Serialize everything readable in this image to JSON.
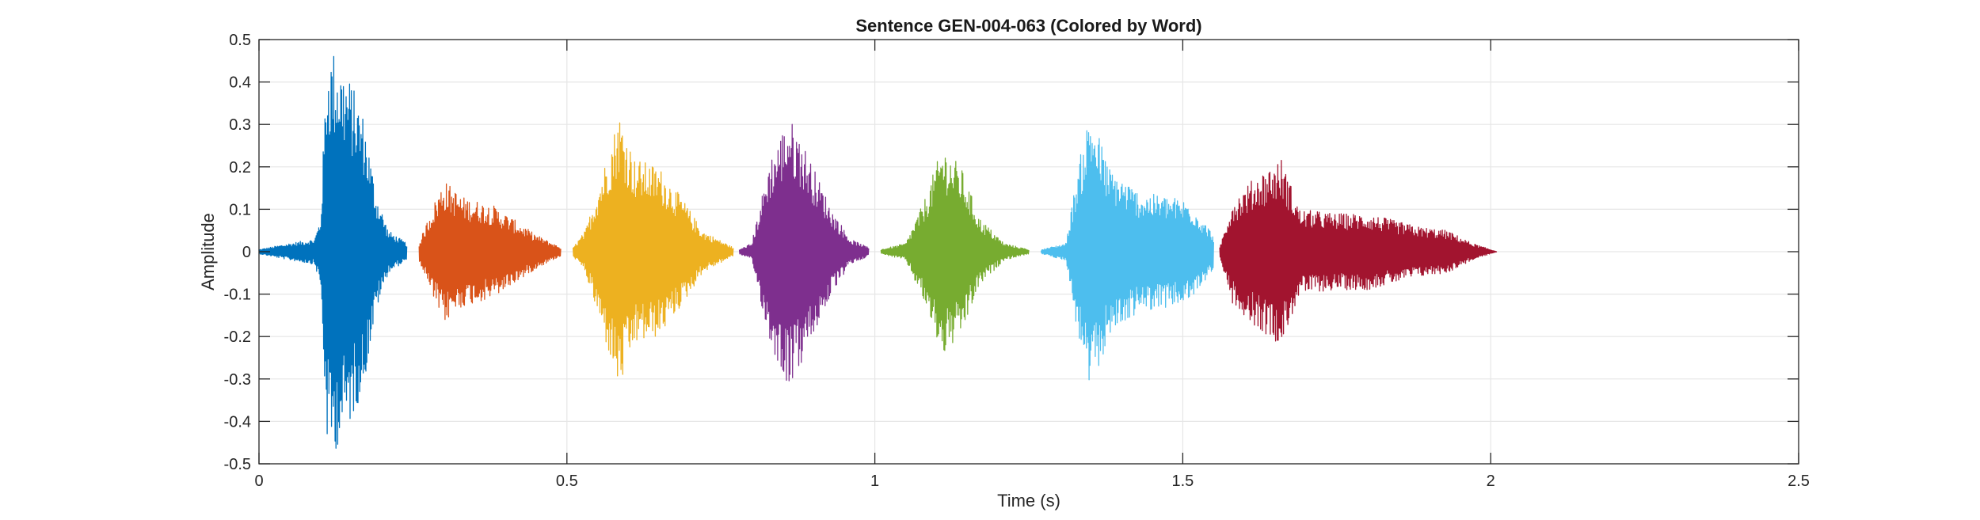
{
  "chart_data": {
    "type": "line",
    "title": "Sentence GEN-004-063 (Colored by Word)",
    "xlabel": "Time (s)",
    "ylabel": "Amplitude",
    "xlim": [
      0,
      2.5
    ],
    "ylim": [
      -0.5,
      0.5
    ],
    "x_ticks": [
      "0",
      "0.5",
      "1",
      "1.5",
      "2",
      "2.5"
    ],
    "x_tick_values": [
      0,
      0.5,
      1,
      1.5,
      2,
      2.5
    ],
    "y_ticks": [
      "0.5",
      "0.4",
      "0.3",
      "0.2",
      "0.1",
      "0",
      "-0.1",
      "-0.2",
      "-0.3",
      "-0.4",
      "-0.5"
    ],
    "y_tick_values": [
      0.5,
      0.4,
      0.3,
      0.2,
      0.1,
      0,
      -0.1,
      -0.2,
      -0.3,
      -0.4,
      -0.5
    ],
    "grid": true,
    "series": [
      {
        "color": "#0072BD",
        "t_start": 0.0,
        "t_end": 0.24,
        "envelope": [
          [
            0.0,
            0.005
          ],
          [
            0.05,
            0.02
          ],
          [
            0.09,
            0.03
          ],
          [
            0.1,
            0.08
          ],
          [
            0.11,
            0.45
          ],
          [
            0.12,
            0.48
          ],
          [
            0.15,
            0.4
          ],
          [
            0.17,
            0.32
          ],
          [
            0.19,
            0.14
          ],
          [
            0.21,
            0.05
          ],
          [
            0.24,
            0.02
          ]
        ]
      },
      {
        "color": "#D95319",
        "t_start": 0.26,
        "t_end": 0.49,
        "envelope": [
          [
            0.26,
            0.02
          ],
          [
            0.28,
            0.1
          ],
          [
            0.3,
            0.17
          ],
          [
            0.33,
            0.13
          ],
          [
            0.38,
            0.11
          ],
          [
            0.42,
            0.07
          ],
          [
            0.45,
            0.04
          ],
          [
            0.49,
            0.01
          ]
        ]
      },
      {
        "color": "#EDB120",
        "t_start": 0.51,
        "t_end": 0.77,
        "envelope": [
          [
            0.51,
            0.01
          ],
          [
            0.53,
            0.05
          ],
          [
            0.56,
            0.2
          ],
          [
            0.585,
            0.33
          ],
          [
            0.61,
            0.22
          ],
          [
            0.65,
            0.2
          ],
          [
            0.69,
            0.12
          ],
          [
            0.72,
            0.05
          ],
          [
            0.77,
            0.01
          ]
        ]
      },
      {
        "color": "#7E2F8E",
        "t_start": 0.78,
        "t_end": 0.99,
        "envelope": [
          [
            0.78,
            0.005
          ],
          [
            0.8,
            0.02
          ],
          [
            0.83,
            0.22
          ],
          [
            0.86,
            0.32
          ],
          [
            0.88,
            0.27
          ],
          [
            0.9,
            0.2
          ],
          [
            0.93,
            0.1
          ],
          [
            0.96,
            0.03
          ],
          [
            0.99,
            0.01
          ]
        ]
      },
      {
        "color": "#77AC30",
        "t_start": 1.01,
        "t_end": 1.25,
        "envelope": [
          [
            1.01,
            0.005
          ],
          [
            1.05,
            0.02
          ],
          [
            1.08,
            0.12
          ],
          [
            1.11,
            0.25
          ],
          [
            1.14,
            0.2
          ],
          [
            1.17,
            0.08
          ],
          [
            1.21,
            0.02
          ],
          [
            1.25,
            0.005
          ]
        ]
      },
      {
        "color": "#4DBEEE",
        "t_start": 1.27,
        "t_end": 1.55,
        "envelope": [
          [
            1.27,
            0.005
          ],
          [
            1.31,
            0.02
          ],
          [
            1.33,
            0.2
          ],
          [
            1.35,
            0.34
          ],
          [
            1.38,
            0.2
          ],
          [
            1.43,
            0.14
          ],
          [
            1.48,
            0.13
          ],
          [
            1.51,
            0.12
          ],
          [
            1.55,
            0.04
          ]
        ]
      },
      {
        "color": "#A2142F",
        "t_start": 1.56,
        "t_end": 2.01,
        "envelope": [
          [
            1.56,
            0.01
          ],
          [
            1.58,
            0.12
          ],
          [
            1.62,
            0.18
          ],
          [
            1.66,
            0.22
          ],
          [
            1.69,
            0.1
          ],
          [
            1.75,
            0.09
          ],
          [
            1.8,
            0.09
          ],
          [
            1.88,
            0.06
          ],
          [
            1.93,
            0.05
          ],
          [
            1.97,
            0.02
          ],
          [
            2.01,
            0.0
          ]
        ]
      }
    ]
  }
}
